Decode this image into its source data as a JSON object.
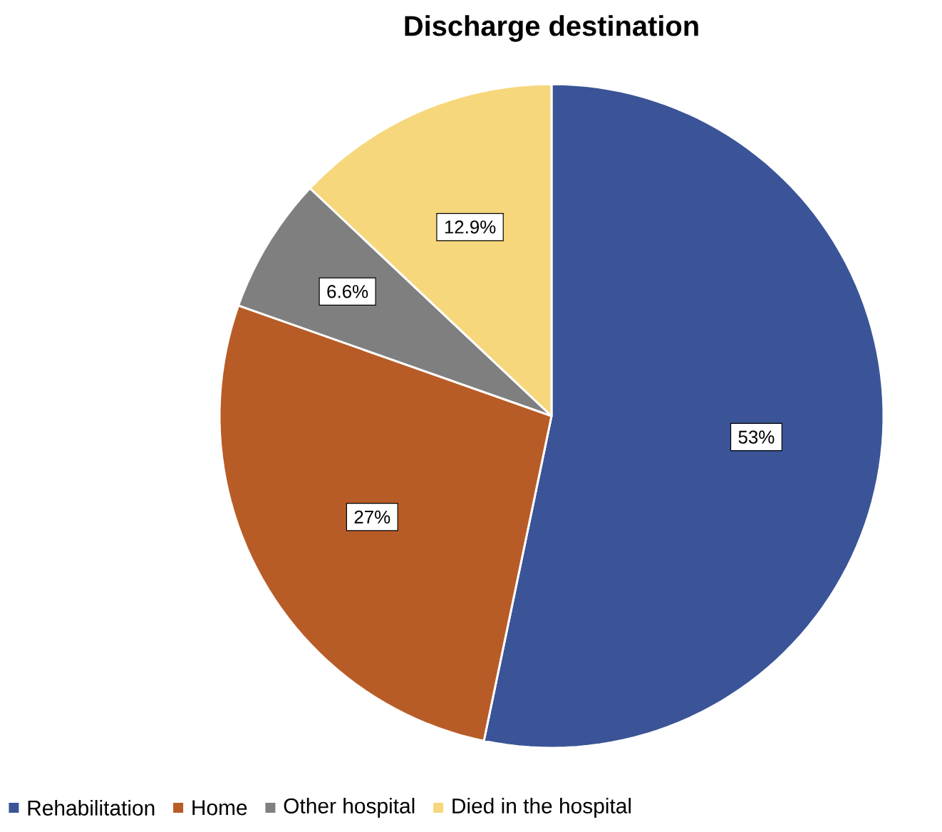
{
  "chart_data": {
    "type": "pie",
    "title": "Discharge destination",
    "categories": [
      "Rehabilitation",
      "Home",
      "Other hospital",
      "Died in the hospital"
    ],
    "values": [
      53,
      27,
      6.6,
      12.9
    ],
    "value_labels": [
      "53%",
      "27%",
      "6.6%",
      "12.9%"
    ],
    "colors": [
      "#3a5497",
      "#b85c27",
      "#7f7f7f",
      "#f6d77c"
    ],
    "legend": "bottom"
  }
}
